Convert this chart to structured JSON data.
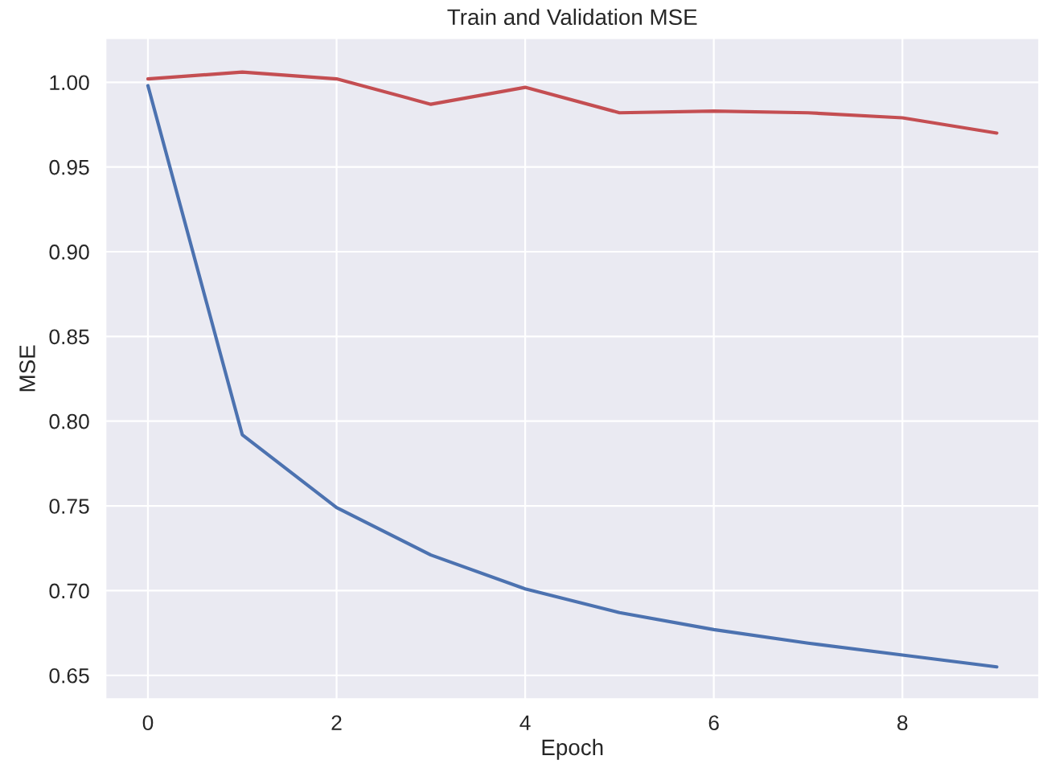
{
  "chart_data": {
    "type": "line",
    "title": "Train and Validation MSE",
    "xlabel": "Epoch",
    "ylabel": "MSE",
    "x": [
      0,
      1,
      2,
      3,
      4,
      5,
      6,
      7,
      8,
      9
    ],
    "series": [
      {
        "color": "#4c72b0",
        "values": [
          0.998,
          0.792,
          0.749,
          0.721,
          0.701,
          0.687,
          0.677,
          0.669,
          0.662,
          0.655
        ]
      },
      {
        "color": "#c44e52",
        "values": [
          1.002,
          1.006,
          1.002,
          0.987,
          0.997,
          0.982,
          0.983,
          0.982,
          0.979,
          0.97
        ]
      }
    ],
    "xlim": [
      -0.45,
      9.45
    ],
    "xticks": [
      0,
      2,
      4,
      6,
      8
    ],
    "ylim": [
      0.636,
      1.026
    ],
    "yticks": [
      {
        "value": 0.65,
        "label": "0.65"
      },
      {
        "value": 0.7,
        "label": "0.70"
      },
      {
        "value": 0.75,
        "label": "0.75"
      },
      {
        "value": 0.8,
        "label": "0.80"
      },
      {
        "value": 0.85,
        "label": "0.85"
      },
      {
        "value": 0.9,
        "label": "0.90"
      },
      {
        "value": 0.95,
        "label": "0.95"
      },
      {
        "value": 1.0,
        "label": "1.00"
      }
    ],
    "grid": true,
    "line_style": "solid"
  }
}
